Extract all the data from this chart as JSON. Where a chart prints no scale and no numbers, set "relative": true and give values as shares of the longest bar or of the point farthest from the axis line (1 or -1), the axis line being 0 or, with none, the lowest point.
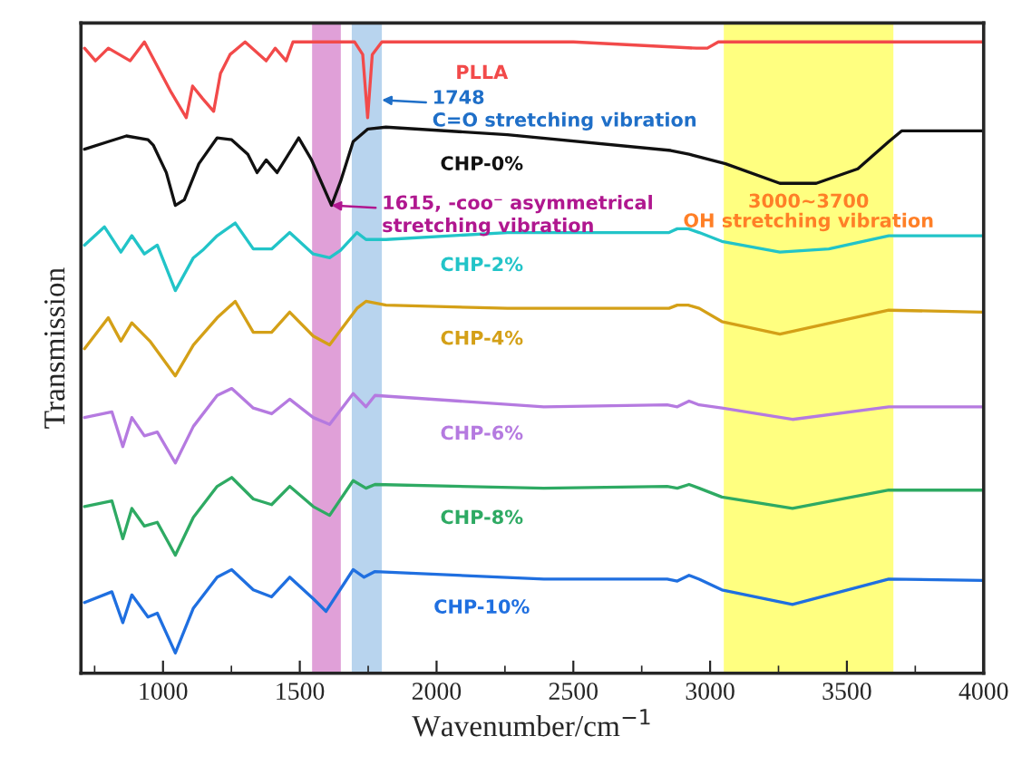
{
  "chart_data": {
    "type": "line",
    "relative": true,
    "xlabel": "Wavenumber/cm$^{−1}$",
    "ylabel": "Transmission",
    "xlim": [
      700,
      4000
    ],
    "xticks": [
      1000,
      1500,
      2000,
      2500,
      3000,
      3500,
      4000
    ],
    "legend": false,
    "grid": false,
    "series": [
      {
        "name": "PLLA",
        "color": "#f24a4a",
        "x": [
          713,
          753,
          800,
          880,
          932,
          1030,
          1085,
          1108,
          1145,
          1185,
          1210,
          1245,
          1300,
          1377,
          1410,
          1450,
          1475,
          1700,
          1730,
          1748,
          1765,
          1800,
          2500,
          2950,
          2990,
          3030,
          3500,
          4000
        ],
        "values": [
          0.99,
          0.97,
          0.99,
          0.97,
          1,
          0.92,
          0.88,
          0.93,
          0.91,
          0.89,
          0.95,
          0.98,
          1,
          0.97,
          0.99,
          0.97,
          1,
          1,
          0.98,
          0.88,
          0.98,
          1,
          1,
          0.99,
          0.99,
          1,
          1,
          1
        ]
      },
      {
        "name": "CHP-0%",
        "color": "#111111",
        "x": [
          713,
          800,
          866,
          945,
          965,
          1012,
          1045,
          1078,
          1131,
          1198,
          1251,
          1310,
          1344,
          1377,
          1417,
          1496,
          1543,
          1616,
          1649,
          1695,
          1749,
          1815,
          2259,
          2856,
          2923,
          3056,
          3255,
          3388,
          3540,
          3653,
          3700,
          3998
        ],
        "values": [
          0.83,
          0.842,
          0.851,
          0.845,
          0.836,
          0.793,
          0.741,
          0.75,
          0.807,
          0.848,
          0.845,
          0.822,
          0.793,
          0.813,
          0.793,
          0.848,
          0.813,
          0.741,
          0.779,
          0.842,
          0.862,
          0.865,
          0.853,
          0.828,
          0.822,
          0.807,
          0.776,
          0.776,
          0.799,
          0.842,
          0.859,
          0.859
        ]
      },
      {
        "name": "CHP-2%",
        "color": "#22c4c8",
        "x": [
          713,
          786,
          846,
          886,
          932,
          979,
          1045,
          1111,
          1145,
          1198,
          1264,
          1330,
          1397,
          1463,
          1549,
          1609,
          1649,
          1709,
          1742,
          1815,
          2259,
          2850,
          2880,
          2920,
          2960,
          3043,
          3255,
          3434,
          3653,
          3998
        ],
        "values": [
          0.678,
          0.707,
          0.667,
          0.693,
          0.664,
          0.678,
          0.606,
          0.658,
          0.67,
          0.693,
          0.713,
          0.672,
          0.672,
          0.698,
          0.664,
          0.658,
          0.67,
          0.698,
          0.687,
          0.687,
          0.698,
          0.698,
          0.704,
          0.704,
          0.698,
          0.684,
          0.667,
          0.672,
          0.693,
          0.693
        ]
      },
      {
        "name": "CHP-4%",
        "color": "#d4a017",
        "x": [
          713,
          800,
          846,
          886,
          952,
          1045,
          1111,
          1198,
          1264,
          1330,
          1397,
          1463,
          1549,
          1609,
          1709,
          1742,
          1815,
          2259,
          2850,
          2880,
          2920,
          2960,
          3043,
          3255,
          3653,
          3998
        ],
        "values": [
          0.514,
          0.563,
          0.526,
          0.555,
          0.526,
          0.471,
          0.52,
          0.563,
          0.589,
          0.54,
          0.54,
          0.572,
          0.534,
          0.52,
          0.578,
          0.589,
          0.583,
          0.578,
          0.578,
          0.583,
          0.583,
          0.578,
          0.557,
          0.537,
          0.575,
          0.572
        ]
      },
      {
        "name": "CHP-6%",
        "color": "#b57ae0",
        "x": [
          713,
          813,
          853,
          886,
          932,
          979,
          1045,
          1111,
          1198,
          1251,
          1330,
          1397,
          1463,
          1549,
          1609,
          1695,
          1742,
          1775,
          2392,
          2843,
          2880,
          2923,
          2960,
          3043,
          3301,
          3653,
          3998
        ],
        "values": [
          0.405,
          0.414,
          0.359,
          0.405,
          0.376,
          0.382,
          0.333,
          0.391,
          0.44,
          0.451,
          0.42,
          0.411,
          0.434,
          0.405,
          0.394,
          0.443,
          0.422,
          0.44,
          0.422,
          0.425,
          0.422,
          0.431,
          0.425,
          0.42,
          0.402,
          0.422,
          0.422
        ]
      },
      {
        "name": "CHP-8%",
        "color": "#2eaa63",
        "x": [
          713,
          813,
          853,
          886,
          932,
          979,
          1045,
          1111,
          1198,
          1251,
          1330,
          1397,
          1463,
          1549,
          1609,
          1695,
          1742,
          1775,
          2392,
          2843,
          2880,
          2923,
          2960,
          3043,
          3301,
          3653,
          3998
        ],
        "values": [
          0.264,
          0.273,
          0.213,
          0.261,
          0.233,
          0.239,
          0.187,
          0.247,
          0.296,
          0.31,
          0.276,
          0.267,
          0.296,
          0.264,
          0.25,
          0.305,
          0.293,
          0.299,
          0.293,
          0.296,
          0.293,
          0.299,
          0.293,
          0.279,
          0.261,
          0.29,
          0.29
        ]
      },
      {
        "name": "CHP-10%",
        "color": "#1f6fe0",
        "x": [
          713,
          813,
          853,
          886,
          945,
          979,
          1045,
          1111,
          1198,
          1251,
          1330,
          1397,
          1463,
          1549,
          1596,
          1695,
          1735,
          1775,
          2392,
          2843,
          2880,
          2923,
          2960,
          3043,
          3301,
          3653,
          3998
        ],
        "values": [
          0.112,
          0.129,
          0.08,
          0.124,
          0.089,
          0.095,
          0.032,
          0.103,
          0.152,
          0.164,
          0.132,
          0.121,
          0.152,
          0.118,
          0.098,
          0.164,
          0.152,
          0.161,
          0.149,
          0.149,
          0.146,
          0.155,
          0.149,
          0.132,
          0.109,
          0.149,
          0.147
        ]
      }
    ],
    "bands": [
      {
        "axis": "x",
        "from": 1545,
        "to": 1650,
        "color": "#e0a0d8"
      },
      {
        "axis": "x",
        "from": 1690,
        "to": 1800,
        "color": "#b8d4ee"
      },
      {
        "axis": "x",
        "from": 3050,
        "to": 3670,
        "color": "#ffff80",
        "label": "3000~3700\nOH stretching vibration"
      }
    ],
    "annotations": [
      {
        "text": "1748\nC=O stretching vibration",
        "x": 1800,
        "y": 0.908
      },
      {
        "text": "1615, -coo⁻ asymmetrical\nstretching vibration",
        "x": 1616,
        "y": 0.741
      }
    ]
  }
}
